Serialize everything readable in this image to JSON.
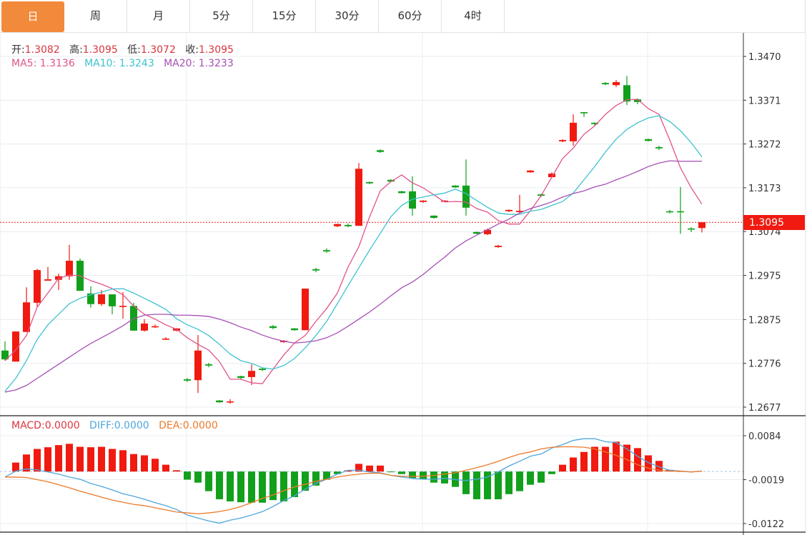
{
  "tabs": [
    {
      "label": "日",
      "active": true
    },
    {
      "label": "周",
      "active": false
    },
    {
      "label": "月",
      "active": false
    },
    {
      "label": "5分",
      "active": false
    },
    {
      "label": "15分",
      "active": false
    },
    {
      "label": "30分",
      "active": false
    },
    {
      "label": "60分",
      "active": false
    },
    {
      "label": "4时",
      "active": false
    }
  ],
  "ohlc_legend": {
    "open_label": "开:",
    "open": "1.3082",
    "high_label": "高:",
    "high": "1.3095",
    "low_label": "低:",
    "low": "1.3072",
    "close_label": "收:",
    "close": "1.3095"
  },
  "ma_legend": {
    "ma5_label": "MA5:",
    "ma5": "1.3136",
    "ma10_label": "MA10:",
    "ma10": "1.3243",
    "ma20_label": "MA20:",
    "ma20": "1.3233"
  },
  "macd_legend": {
    "macd_label": "MACD:",
    "macd": "0.0000",
    "diff_label": "DIFF:",
    "diff": "0.0000",
    "dea_label": "DEA:",
    "dea": "0.0000"
  },
  "current_price": "1.3095",
  "colors": {
    "up": "#f01a10",
    "down": "#12a01c",
    "ma5": "#e0548c",
    "ma10": "#3fc2cf",
    "ma20": "#a64fb5",
    "diff": "#4ea6dc",
    "dea": "#ec7a2a",
    "active_tab": "#f28a3c",
    "price_tag": "#f01a10"
  },
  "chart_data": [
    {
      "type": "candlestick",
      "title": "",
      "ylim": [
        1.2677,
        1.347
      ],
      "yticks": [
        "1.3470",
        "1.3371",
        "1.3272",
        "1.3173",
        "1.3074",
        "1.2975",
        "1.2875",
        "1.2776",
        "1.2677"
      ],
      "grid": true,
      "candle_fields": [
        "open",
        "high",
        "low",
        "close"
      ],
      "candles": [
        [
          1.2805,
          1.2826,
          1.2782,
          1.2785
        ],
        [
          1.278,
          1.2848,
          1.278,
          1.2848
        ],
        [
          1.2847,
          1.2948,
          1.2847,
          1.2914
        ],
        [
          1.2913,
          1.299,
          1.2903,
          1.2987
        ],
        [
          1.2963,
          1.2994,
          1.2963,
          1.2966
        ],
        [
          1.2965,
          1.2979,
          1.2942,
          1.2973
        ],
        [
          1.2973,
          1.3044,
          1.2965,
          1.3008
        ],
        [
          1.3008,
          1.3013,
          1.294,
          1.294
        ],
        [
          1.2934,
          1.295,
          1.2902,
          1.291
        ],
        [
          1.291,
          1.2942,
          1.2906,
          1.2932
        ],
        [
          1.2932,
          1.2932,
          1.2887,
          1.2905
        ],
        [
          1.2905,
          1.2937,
          1.2877,
          1.2906
        ],
        [
          1.2906,
          1.2913,
          1.285,
          1.285
        ],
        [
          1.285,
          1.2876,
          1.2848,
          1.2866
        ],
        [
          1.2858,
          1.2864,
          1.2856,
          1.286
        ],
        [
          1.283,
          1.2835,
          1.2829,
          1.2832
        ],
        [
          1.285,
          1.2856,
          1.2848,
          1.2855
        ],
        [
          1.274,
          1.2743,
          1.2734,
          1.2737
        ],
        [
          1.2738,
          1.284,
          1.2709,
          1.2805
        ],
        [
          1.2774,
          1.2777,
          1.2767,
          1.2771
        ],
        [
          1.2692,
          1.2693,
          1.2687,
          1.2688
        ],
        [
          1.2688,
          1.2695,
          1.2685,
          1.269
        ],
        [
          1.2747,
          1.2748,
          1.274,
          1.2743
        ],
        [
          1.2745,
          1.2774,
          1.2727,
          1.2759
        ],
        [
          1.2764,
          1.2766,
          1.2759,
          1.2761
        ],
        [
          1.286,
          1.2863,
          1.2853,
          1.2856
        ],
        [
          1.2824,
          1.2829,
          1.2822,
          1.2827
        ],
        [
          1.2855,
          1.2856,
          1.285,
          1.2851
        ],
        [
          1.2851,
          1.2945,
          1.2851,
          1.2945
        ],
        [
          1.2989,
          1.2992,
          1.2982,
          1.2986
        ],
        [
          1.3032,
          1.3036,
          1.3026,
          1.3029
        ],
        [
          1.3086,
          1.3092,
          1.3084,
          1.3091
        ],
        [
          1.3089,
          1.3092,
          1.3084,
          1.3086
        ],
        [
          1.3087,
          1.3229,
          1.3087,
          1.3216
        ],
        [
          1.3186,
          1.3187,
          1.3181,
          1.3183
        ],
        [
          1.3258,
          1.326,
          1.3252,
          1.3254
        ],
        [
          1.3191,
          1.3192,
          1.3186,
          1.3187
        ],
        [
          1.3165,
          1.3166,
          1.316,
          1.3161
        ],
        [
          1.3165,
          1.3199,
          1.311,
          1.3126
        ],
        [
          1.3141,
          1.3145,
          1.3139,
          1.3144
        ],
        [
          1.311,
          1.3111,
          1.3103,
          1.3105
        ],
        [
          1.3142,
          1.3145,
          1.3141,
          1.3144
        ],
        [
          1.3178,
          1.3179,
          1.3173,
          1.3174
        ],
        [
          1.3178,
          1.3237,
          1.311,
          1.3128
        ],
        [
          1.3073,
          1.3074,
          1.3068,
          1.3069
        ],
        [
          1.3068,
          1.3081,
          1.3066,
          1.3078
        ],
        [
          1.3039,
          1.3044,
          1.3037,
          1.3042
        ],
        [
          1.312,
          1.3124,
          1.3118,
          1.3123
        ],
        [
          1.3118,
          1.3157,
          1.3116,
          1.3121
        ],
        [
          1.3208,
          1.3213,
          1.3207,
          1.3212
        ],
        [
          1.3158,
          1.316,
          1.3152,
          1.3155
        ],
        [
          1.3197,
          1.3208,
          1.3195,
          1.3205
        ],
        [
          1.3278,
          1.3283,
          1.3276,
          1.3281
        ],
        [
          1.3278,
          1.3339,
          1.3268,
          1.332
        ],
        [
          1.3344,
          1.3344,
          1.3333,
          1.3342
        ],
        [
          1.332,
          1.3321,
          1.3313,
          1.3317
        ],
        [
          1.341,
          1.3412,
          1.3405,
          1.3407
        ],
        [
          1.3405,
          1.3417,
          1.3401,
          1.3412
        ],
        [
          1.3405,
          1.3426,
          1.336,
          1.3368
        ],
        [
          1.3373,
          1.3375,
          1.3362,
          1.3367
        ],
        [
          1.3283,
          1.3284,
          1.3278,
          1.3279
        ],
        [
          1.3265,
          1.3268,
          1.3258,
          1.3262
        ],
        [
          1.312,
          1.3123,
          1.3115,
          1.3118
        ],
        [
          1.312,
          1.3175,
          1.3069,
          1.3118
        ],
        [
          1.3081,
          1.3084,
          1.3073,
          1.3079
        ],
        [
          1.3082,
          1.3095,
          1.3072,
          1.3095
        ]
      ],
      "series": [
        {
          "name": "MA5",
          "values": [
            1.2782,
            1.2806,
            1.2839,
            1.2903,
            1.2935,
            1.2968,
            1.2976,
            1.2974,
            1.2963,
            1.2955,
            1.2945,
            1.2931,
            1.2906,
            1.2887,
            1.2876,
            1.2863,
            1.2853,
            1.2834,
            1.2819,
            1.2806,
            1.278,
            1.274,
            1.274,
            1.2732,
            1.273,
            1.2763,
            1.2795,
            1.2822,
            1.2839,
            1.2871,
            1.29,
            1.2935,
            1.2994,
            1.304,
            1.3107,
            1.3166,
            1.3187,
            1.3202,
            1.3184,
            1.3173,
            1.3157,
            1.3141,
            1.3142,
            1.3141,
            1.3126,
            1.3118,
            1.3099,
            1.3091,
            1.3091,
            1.3121,
            1.3155,
            1.3197,
            1.3239,
            1.3263,
            1.3294,
            1.3313,
            1.3339,
            1.3359,
            1.3372,
            1.3373,
            1.3352,
            1.3339,
            1.3281,
            1.3218,
            1.3173,
            1.3136
          ]
        },
        {
          "name": "MA10",
          "values": [
            1.2713,
            1.2742,
            1.2782,
            1.283,
            1.2863,
            1.2887,
            1.2911,
            1.2923,
            1.2931,
            1.2937,
            1.2944,
            1.2945,
            1.2935,
            1.2923,
            1.2911,
            1.2898,
            1.2877,
            1.2863,
            1.2853,
            1.2839,
            1.2819,
            1.2797,
            1.2782,
            1.2776,
            1.2766,
            1.2763,
            1.2771,
            1.2787,
            1.2811,
            1.2839,
            1.2871,
            1.2911,
            1.2952,
            1.2992,
            1.3032,
            1.307,
            1.3108,
            1.3133,
            1.3147,
            1.3152,
            1.3157,
            1.3161,
            1.317,
            1.316,
            1.3144,
            1.3129,
            1.3116,
            1.3113,
            1.3113,
            1.312,
            1.3124,
            1.3133,
            1.3142,
            1.3161,
            1.3191,
            1.3221,
            1.3254,
            1.3283,
            1.3305,
            1.332,
            1.3331,
            1.3336,
            1.3323,
            1.3302,
            1.3275,
            1.3243
          ]
        },
        {
          "name": "MA20",
          "values": [
            1.2711,
            1.2716,
            1.2726,
            1.2742,
            1.2758,
            1.2774,
            1.279,
            1.2806,
            1.2821,
            1.2834,
            1.2847,
            1.2861,
            1.2877,
            1.2885,
            1.2887,
            1.2887,
            1.2885,
            1.2885,
            1.2884,
            1.2882,
            1.2876,
            1.2868,
            1.2858,
            1.285,
            1.284,
            1.2832,
            1.2826,
            1.2822,
            1.2824,
            1.2827,
            1.2834,
            1.2845,
            1.286,
            1.2876,
            1.2892,
            1.291,
            1.2929,
            1.2947,
            1.296,
            1.2977,
            1.2997,
            1.3016,
            1.3037,
            1.3053,
            1.3066,
            1.3078,
            1.3091,
            1.3102,
            1.3116,
            1.3126,
            1.3133,
            1.3141,
            1.3152,
            1.316,
            1.3166,
            1.3175,
            1.3181,
            1.3191,
            1.32,
            1.321,
            1.3221,
            1.3229,
            1.3234,
            1.3233,
            1.3233,
            1.3233
          ]
        }
      ]
    },
    {
      "type": "bar",
      "title": "",
      "ylim": [
        -0.0122,
        0.0084
      ],
      "yticks": [
        "0.0084",
        "-0.0019",
        "-0.0122"
      ],
      "grid": true,
      "macd": [
        0,
        0.0021,
        0.004,
        0.0053,
        0.0057,
        0.0062,
        0.0065,
        0.0058,
        0.0057,
        0.0058,
        0.0053,
        0.005,
        0.0041,
        0.0038,
        0.003,
        0.0016,
        0.0003,
        -0.0019,
        -0.0026,
        -0.0046,
        -0.0065,
        -0.007,
        -0.0072,
        -0.0073,
        -0.0073,
        -0.0067,
        -0.007,
        -0.006,
        -0.0045,
        -0.0033,
        -0.0019,
        -0.0006,
        0.0003,
        0.0018,
        0.0014,
        0.0014,
        -0.0001,
        -0.0006,
        -0.0016,
        -0.0018,
        -0.0026,
        -0.0028,
        -0.0036,
        -0.0053,
        -0.0065,
        -0.0065,
        -0.0065,
        -0.0053,
        -0.0046,
        -0.0031,
        -0.0026,
        -0.0006,
        0.0016,
        0.0033,
        0.0046,
        0.0058,
        0.0058,
        0.007,
        0.0063,
        0.0055,
        0.0038,
        0.0025,
        0.0004,
        0.0001,
        0,
        0
      ],
      "series": [
        {
          "name": "DIFF",
          "values": [
            -0.0013,
            0.0001,
            0.0006,
            0.0004,
            -0.0001,
            -0.0006,
            -0.0013,
            -0.0018,
            -0.0028,
            -0.0035,
            -0.0043,
            -0.0052,
            -0.0058,
            -0.0065,
            -0.0073,
            -0.008,
            -0.0089,
            -0.0102,
            -0.0109,
            -0.0116,
            -0.0121,
            -0.0114,
            -0.0109,
            -0.0102,
            -0.0094,
            -0.0082,
            -0.0068,
            -0.0057,
            -0.0041,
            -0.0028,
            -0.0018,
            -0.0006,
            0.0003,
            0.0003,
            -0.0001,
            -0.0003,
            -0.0009,
            -0.0013,
            -0.0016,
            -0.0018,
            -0.0018,
            -0.0016,
            -0.0019,
            -0.0021,
            -0.0018,
            -0.0013,
            -0.0001,
            0.0013,
            0.0024,
            0.0036,
            0.0041,
            0.0055,
            0.0063,
            0.0073,
            0.0077,
            0.0077,
            0.007,
            0.0068,
            0.0053,
            0.0036,
            0.0021,
            0.0011,
            0.0003,
            0.0001,
            -0.0001,
            0.0001
          ]
        },
        {
          "name": "DEA",
          "values": [
            -0.0013,
            -0.0013,
            -0.0014,
            -0.0019,
            -0.0024,
            -0.0031,
            -0.0038,
            -0.0046,
            -0.0053,
            -0.006,
            -0.0067,
            -0.0072,
            -0.0077,
            -0.008,
            -0.0085,
            -0.009,
            -0.0095,
            -0.0097,
            -0.0099,
            -0.0097,
            -0.0094,
            -0.0089,
            -0.0082,
            -0.0073,
            -0.0063,
            -0.0055,
            -0.0045,
            -0.0036,
            -0.003,
            -0.0023,
            -0.0018,
            -0.0013,
            -0.0009,
            -0.0006,
            -0.0004,
            -0.0004,
            -0.0009,
            -0.0011,
            -0.0011,
            -0.0011,
            -0.0009,
            -0.0006,
            -0.0003,
            0.0003,
            0.0009,
            0.0016,
            0.0024,
            0.0033,
            0.0041,
            0.0046,
            0.0053,
            0.0057,
            0.0058,
            0.0058,
            0.0057,
            0.0053,
            0.0046,
            0.0038,
            0.0028,
            0.0016,
            0.0008,
            0.0003,
            0.0001,
            0.0001,
            -0.0001,
            0.0001
          ]
        }
      ]
    }
  ]
}
